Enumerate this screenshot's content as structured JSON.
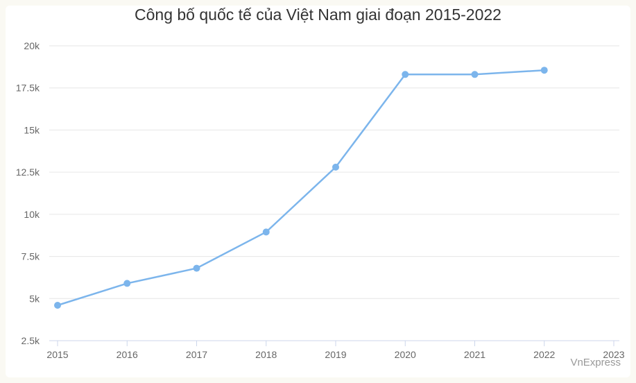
{
  "chart_data": {
    "type": "line",
    "title": "Công bố quốc tế của Việt Nam giai đoạn 2015-2022",
    "xlabel": "",
    "ylabel": "",
    "x": [
      2015,
      2016,
      2017,
      2018,
      2019,
      2020,
      2021,
      2022
    ],
    "x_ticks": [
      "2015",
      "2016",
      "2017",
      "2018",
      "2019",
      "2020",
      "2021",
      "2022",
      "2023"
    ],
    "xlim": [
      2015,
      2023
    ],
    "y_ticks": [
      "2.5k",
      "5k",
      "7.5k",
      "10k",
      "12.5k",
      "15k",
      "17.5k",
      "20k"
    ],
    "y_tick_values": [
      2500,
      5000,
      7500,
      10000,
      12500,
      15000,
      17500,
      20000
    ],
    "ylim": [
      2500,
      20000
    ],
    "series": [
      {
        "values": [
          4600,
          5900,
          6800,
          8950,
          12800,
          18300,
          18300,
          18550
        ]
      }
    ],
    "grid": true,
    "legend": "none"
  },
  "colors": {
    "line": "#7cb5ec",
    "grid": "#e6e6e6",
    "axis": "#ccd6eb"
  },
  "source": "VnExpress"
}
